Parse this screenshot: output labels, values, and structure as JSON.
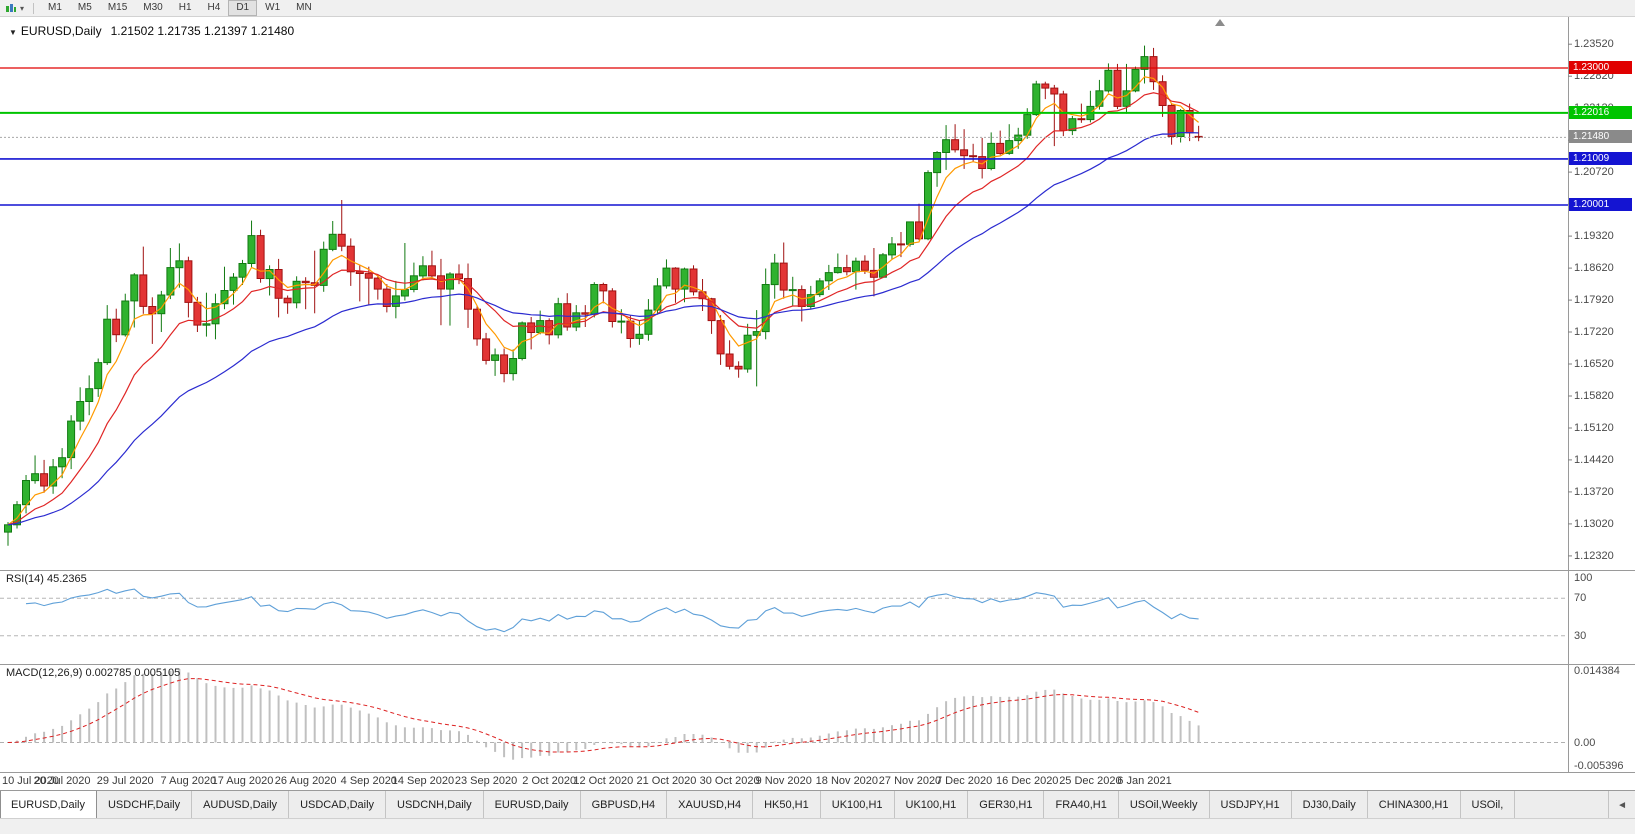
{
  "toolbar": {
    "timeframes": [
      "M1",
      "M5",
      "M15",
      "M30",
      "H1",
      "H4",
      "D1",
      "W1",
      "MN"
    ],
    "active": "D1",
    "icons": {
      "caret": "▾"
    }
  },
  "chart": {
    "title_arrow": "▼",
    "title_symbol": "EURUSD,Daily",
    "title_ohlc": "1.21502 1.21735 1.21397 1.21480"
  },
  "price_axis": {
    "ticks": [
      "1.23520",
      "1.22820",
      "1.22120",
      "1.21420",
      "1.20720",
      "1.20020",
      "1.19320",
      "1.18620",
      "1.17920",
      "1.17220",
      "1.16520",
      "1.15820",
      "1.15120",
      "1.14420",
      "1.13720",
      "1.13020",
      "1.12320"
    ],
    "badges": [
      {
        "price": 1.23,
        "label": "1.23000",
        "bg": "#e00000",
        "fg": "#ffffff"
      },
      {
        "price": 1.22016,
        "label": "1.22016",
        "bg": "#00c400",
        "fg": "#ffffff"
      },
      {
        "price": 1.2148,
        "label": "1.21480",
        "bg": "#8a8a8a",
        "fg": "#ffffff"
      },
      {
        "price": 1.21009,
        "label": "1.21009",
        "bg": "#1414d2",
        "fg": "#ffffff"
      },
      {
        "price": 1.20001,
        "label": "1.20001",
        "bg": "#1414d2",
        "fg": "#ffffff"
      }
    ]
  },
  "hlines": [
    {
      "price": 1.23,
      "color": "#e00000",
      "width": 1.3,
      "dash": ""
    },
    {
      "price": 1.22016,
      "color": "#00c400",
      "width": 2,
      "dash": ""
    },
    {
      "price": 1.2148,
      "color": "#a8a8a8",
      "width": 1,
      "dash": "2 2"
    },
    {
      "price": 1.21009,
      "color": "#1414d2",
      "width": 1.6,
      "dash": ""
    },
    {
      "price": 1.20001,
      "color": "#1414d2",
      "width": 1.6,
      "dash": ""
    }
  ],
  "chart_data": {
    "type": "candlestick",
    "symbol": "EURUSD",
    "timeframe": "Daily",
    "ylim": [
      1.12011,
      1.24138
    ],
    "colors": {
      "up_fill": "#2fb22f",
      "up_border": "#117a11",
      "down_fill": "#e23535",
      "down_border": "#a01111"
    },
    "x_labels": [
      {
        "index": 0,
        "label": "10 Jul 2020"
      },
      {
        "index": 6,
        "label": "20 Jul 2020"
      },
      {
        "index": 13,
        "label": "29 Jul 2020"
      },
      {
        "index": 20,
        "label": "7 Aug 2020"
      },
      {
        "index": 26,
        "label": "17 Aug 2020"
      },
      {
        "index": 33,
        "label": "26 Aug 2020"
      },
      {
        "index": 40,
        "label": "4 Sep 2020"
      },
      {
        "index": 46,
        "label": "14 Sep 2020"
      },
      {
        "index": 53,
        "label": "23 Sep 2020"
      },
      {
        "index": 60,
        "label": "2 Oct 2020"
      },
      {
        "index": 66,
        "label": "12 Oct 2020"
      },
      {
        "index": 73,
        "label": "21 Oct 2020"
      },
      {
        "index": 80,
        "label": "30 Oct 2020"
      },
      {
        "index": 86,
        "label": "9 Nov 2020"
      },
      {
        "index": 93,
        "label": "18 Nov 2020"
      },
      {
        "index": 100,
        "label": "27 Nov 2020"
      },
      {
        "index": 106,
        "label": "7 Dec 2020"
      },
      {
        "index": 113,
        "label": "16 Dec 2020"
      },
      {
        "index": 120,
        "label": "25 Dec 2020"
      },
      {
        "index": 126,
        "label": "6 Jan 2021"
      }
    ],
    "moving_averages": [
      {
        "name": "fast",
        "period": 5,
        "type": "ema",
        "color": "#ff9a00"
      },
      {
        "name": "medium",
        "period": 12,
        "type": "ema",
        "color": "#e02626"
      },
      {
        "name": "slow",
        "period": 30,
        "type": "ema",
        "color": "#2b2bd0"
      }
    ],
    "rsi": {
      "label": "RSI(14) 45.2365",
      "period": 14,
      "color": "#5fa0d8",
      "levels": [
        70,
        30
      ],
      "range": [
        0,
        100
      ],
      "axis_labels": [
        {
          "v": 100,
          "label": "100"
        },
        {
          "v": 70,
          "label": "70"
        },
        {
          "v": 30,
          "label": "30"
        }
      ]
    },
    "macd": {
      "label": "MACD(12,26,9) 0.002785 0.005105",
      "fast": 12,
      "slow": 26,
      "signal": 9,
      "range": [
        -0.005396,
        0.014384
      ],
      "hist_color": "#c0c0c0",
      "signal_color": "#dd2222",
      "axis_labels": [
        {
          "v": 0.014384,
          "label": "0.014384"
        },
        {
          "v": 0,
          "label": "0.00"
        },
        {
          "v": -0.005396,
          "label": "-0.005396"
        }
      ]
    },
    "candles": [
      [
        1.1284,
        1.1306,
        1.1254,
        1.13
      ],
      [
        1.13,
        1.1352,
        1.1292,
        1.1344
      ],
      [
        1.1344,
        1.1409,
        1.1325,
        1.1397
      ],
      [
        1.1397,
        1.1452,
        1.139,
        1.1412
      ],
      [
        1.1412,
        1.1442,
        1.137,
        1.1385
      ],
      [
        1.1385,
        1.1444,
        1.1368,
        1.1427
      ],
      [
        1.1427,
        1.1468,
        1.1402,
        1.1447
      ],
      [
        1.1447,
        1.154,
        1.1422,
        1.1527
      ],
      [
        1.1527,
        1.1601,
        1.1507,
        1.157
      ],
      [
        1.157,
        1.1627,
        1.154,
        1.1598
      ],
      [
        1.1598,
        1.1664,
        1.158,
        1.1655
      ],
      [
        1.1655,
        1.1781,
        1.165,
        1.175
      ],
      [
        1.175,
        1.1773,
        1.17,
        1.1716
      ],
      [
        1.1716,
        1.1806,
        1.1712,
        1.179
      ],
      [
        1.179,
        1.1851,
        1.1732,
        1.1847
      ],
      [
        1.1847,
        1.1909,
        1.1762,
        1.1778
      ],
      [
        1.1778,
        1.1798,
        1.1696,
        1.1762
      ],
      [
        1.1762,
        1.1812,
        1.1722,
        1.1803
      ],
      [
        1.1803,
        1.1906,
        1.1794,
        1.1863
      ],
      [
        1.1863,
        1.1916,
        1.1819,
        1.1878
      ],
      [
        1.1878,
        1.1887,
        1.1754,
        1.1787
      ],
      [
        1.1787,
        1.1799,
        1.1722,
        1.1737
      ],
      [
        1.1737,
        1.1808,
        1.1712,
        1.174
      ],
      [
        1.174,
        1.1806,
        1.1706,
        1.1784
      ],
      [
        1.1784,
        1.1865,
        1.1772,
        1.1813
      ],
      [
        1.1813,
        1.1851,
        1.1782,
        1.1842
      ],
      [
        1.1842,
        1.188,
        1.1825,
        1.1872
      ],
      [
        1.1872,
        1.1966,
        1.1864,
        1.1933
      ],
      [
        1.1933,
        1.1946,
        1.183,
        1.1839
      ],
      [
        1.1839,
        1.1868,
        1.1802,
        1.1859
      ],
      [
        1.1859,
        1.1882,
        1.1754,
        1.1796
      ],
      [
        1.1796,
        1.1802,
        1.1762,
        1.1786
      ],
      [
        1.1786,
        1.1844,
        1.1774,
        1.1833
      ],
      [
        1.1833,
        1.1842,
        1.1772,
        1.183
      ],
      [
        1.183,
        1.19,
        1.1763,
        1.1824
      ],
      [
        1.1824,
        1.192,
        1.181,
        1.1903
      ],
      [
        1.1903,
        1.1965,
        1.1899,
        1.1936
      ],
      [
        1.1936,
        1.2011,
        1.1899,
        1.191
      ],
      [
        1.191,
        1.1927,
        1.1823,
        1.1854
      ],
      [
        1.1854,
        1.1868,
        1.1789,
        1.185
      ],
      [
        1.185,
        1.1865,
        1.1781,
        1.184
      ],
      [
        1.184,
        1.1848,
        1.1793,
        1.1816
      ],
      [
        1.1816,
        1.1827,
        1.1765,
        1.1778
      ],
      [
        1.1778,
        1.1834,
        1.1752,
        1.1801
      ],
      [
        1.1801,
        1.1917,
        1.1791,
        1.1815
      ],
      [
        1.1815,
        1.1874,
        1.1809,
        1.1845
      ],
      [
        1.1845,
        1.1888,
        1.1835,
        1.1867
      ],
      [
        1.1867,
        1.19,
        1.1838,
        1.1845
      ],
      [
        1.1845,
        1.1882,
        1.1737,
        1.1816
      ],
      [
        1.1816,
        1.1853,
        1.1736,
        1.1849
      ],
      [
        1.1849,
        1.187,
        1.1827,
        1.1839
      ],
      [
        1.1839,
        1.1872,
        1.1731,
        1.1772
      ],
      [
        1.1772,
        1.1778,
        1.1692,
        1.1707
      ],
      [
        1.1707,
        1.172,
        1.1651,
        1.166
      ],
      [
        1.166,
        1.1686,
        1.1626,
        1.1672
      ],
      [
        1.1672,
        1.1686,
        1.1612,
        1.1631
      ],
      [
        1.1631,
        1.1684,
        1.1616,
        1.1664
      ],
      [
        1.1664,
        1.1745,
        1.166,
        1.1742
      ],
      [
        1.1742,
        1.1755,
        1.1684,
        1.1721
      ],
      [
        1.1721,
        1.1769,
        1.1717,
        1.1747
      ],
      [
        1.1747,
        1.1752,
        1.1695,
        1.1716
      ],
      [
        1.1716,
        1.1797,
        1.1708,
        1.1784
      ],
      [
        1.1784,
        1.1807,
        1.1725,
        1.1733
      ],
      [
        1.1733,
        1.1781,
        1.1724,
        1.1764
      ],
      [
        1.1764,
        1.1781,
        1.1733,
        1.1761
      ],
      [
        1.1761,
        1.1831,
        1.1754,
        1.1826
      ],
      [
        1.1826,
        1.183,
        1.1785,
        1.1812
      ],
      [
        1.1812,
        1.1818,
        1.1732,
        1.1745
      ],
      [
        1.1745,
        1.1772,
        1.1719,
        1.1746
      ],
      [
        1.1746,
        1.1758,
        1.1688,
        1.1708
      ],
      [
        1.1708,
        1.1747,
        1.1694,
        1.1717
      ],
      [
        1.1717,
        1.1794,
        1.1703,
        1.177
      ],
      [
        1.177,
        1.184,
        1.176,
        1.1823
      ],
      [
        1.1823,
        1.1881,
        1.1817,
        1.1862
      ],
      [
        1.1862,
        1.1864,
        1.1786,
        1.1816
      ],
      [
        1.1816,
        1.1863,
        1.1787,
        1.186
      ],
      [
        1.186,
        1.1868,
        1.1802,
        1.181
      ],
      [
        1.181,
        1.1838,
        1.1768,
        1.1795
      ],
      [
        1.1795,
        1.1797,
        1.1718,
        1.1747
      ],
      [
        1.1747,
        1.1759,
        1.165,
        1.1674
      ],
      [
        1.1674,
        1.1704,
        1.164,
        1.1647
      ],
      [
        1.1647,
        1.1658,
        1.1622,
        1.1641
      ],
      [
        1.1641,
        1.174,
        1.1633,
        1.1715
      ],
      [
        1.1715,
        1.177,
        1.1603,
        1.1723
      ],
      [
        1.1723,
        1.1861,
        1.1706,
        1.1826
      ],
      [
        1.1826,
        1.1893,
        1.1795,
        1.1873
      ],
      [
        1.1873,
        1.1918,
        1.1795,
        1.1814
      ],
      [
        1.1814,
        1.1843,
        1.1779,
        1.1815
      ],
      [
        1.1815,
        1.1824,
        1.1745,
        1.1778
      ],
      [
        1.1778,
        1.1823,
        1.1772,
        1.1804
      ],
      [
        1.1804,
        1.184,
        1.1799,
        1.1834
      ],
      [
        1.1834,
        1.1869,
        1.1814,
        1.1852
      ],
      [
        1.1852,
        1.1894,
        1.185,
        1.1863
      ],
      [
        1.1863,
        1.1891,
        1.1846,
        1.1854
      ],
      [
        1.1854,
        1.1885,
        1.1815,
        1.1877
      ],
      [
        1.1877,
        1.189,
        1.1849,
        1.1857
      ],
      [
        1.1857,
        1.1906,
        1.18,
        1.1842
      ],
      [
        1.1842,
        1.1895,
        1.184,
        1.1891
      ],
      [
        1.1891,
        1.193,
        1.1881,
        1.1915
      ],
      [
        1.1915,
        1.1941,
        1.1886,
        1.1914
      ],
      [
        1.1914,
        1.1964,
        1.1909,
        1.1963
      ],
      [
        1.1963,
        1.2003,
        1.1923,
        1.1926
      ],
      [
        1.1926,
        1.2076,
        1.1923,
        1.2071
      ],
      [
        1.2071,
        1.2118,
        1.204,
        1.2115
      ],
      [
        1.2115,
        1.2175,
        1.2077,
        1.2143
      ],
      [
        1.2143,
        1.2177,
        1.2115,
        1.2121
      ],
      [
        1.2121,
        1.2166,
        1.2079,
        1.2108
      ],
      [
        1.2108,
        1.2134,
        1.2095,
        1.2106
      ],
      [
        1.2106,
        1.2147,
        1.2058,
        1.208
      ],
      [
        1.208,
        1.2159,
        1.2076,
        1.2135
      ],
      [
        1.2135,
        1.2163,
        1.211,
        1.2113
      ],
      [
        1.2113,
        1.2177,
        1.211,
        1.2141
      ],
      [
        1.2141,
        1.2169,
        1.2123,
        1.2153
      ],
      [
        1.2153,
        1.2212,
        1.2145,
        1.2198
      ],
      [
        1.2198,
        1.2272,
        1.2195,
        1.2265
      ],
      [
        1.2265,
        1.227,
        1.2232,
        1.2256
      ],
      [
        1.2256,
        1.2263,
        1.2129,
        1.2243
      ],
      [
        1.2243,
        1.225,
        1.2151,
        1.2163
      ],
      [
        1.2163,
        1.2195,
        1.2153,
        1.2189
      ],
      [
        1.2189,
        1.2222,
        1.218,
        1.2187
      ],
      [
        1.2187,
        1.225,
        1.2181,
        1.2216
      ],
      [
        1.2216,
        1.2274,
        1.2209,
        1.225
      ],
      [
        1.225,
        1.231,
        1.2246,
        1.2295
      ],
      [
        1.2295,
        1.2309,
        1.221,
        1.2216
      ],
      [
        1.2216,
        1.2309,
        1.22,
        1.225
      ],
      [
        1.225,
        1.2303,
        1.2247,
        1.2297
      ],
      [
        1.2297,
        1.2349,
        1.2266,
        1.2325
      ],
      [
        1.2325,
        1.2344,
        1.2252,
        1.227
      ],
      [
        1.227,
        1.2284,
        1.2193,
        1.2218
      ],
      [
        1.2218,
        1.2223,
        1.2132,
        1.215
      ],
      [
        1.215,
        1.221,
        1.2137,
        1.2207
      ],
      [
        1.2207,
        1.2222,
        1.214,
        1.2158
      ],
      [
        1.21502,
        1.21735,
        1.21397,
        1.2148
      ]
    ]
  },
  "tabs": {
    "scroll_left": "◄",
    "items": [
      {
        "label": "EURUSD,Daily",
        "active": true
      },
      {
        "label": "USDCHF,Daily"
      },
      {
        "label": "AUDUSD,Daily"
      },
      {
        "label": "USDCAD,Daily"
      },
      {
        "label": "USDCNH,Daily"
      },
      {
        "label": "EURUSD,Daily"
      },
      {
        "label": "GBPUSD,H4"
      },
      {
        "label": "XAUUSD,H4"
      },
      {
        "label": "HK50,H1"
      },
      {
        "label": "UK100,H1"
      },
      {
        "label": "UK100,H1"
      },
      {
        "label": "GER30,H1"
      },
      {
        "label": "FRA40,H1"
      },
      {
        "label": "USOil,Weekly"
      },
      {
        "label": "USDJPY,H1"
      },
      {
        "label": "DJ30,Daily"
      },
      {
        "label": "CHINA300,H1"
      },
      {
        "label": "USOil,"
      }
    ]
  }
}
